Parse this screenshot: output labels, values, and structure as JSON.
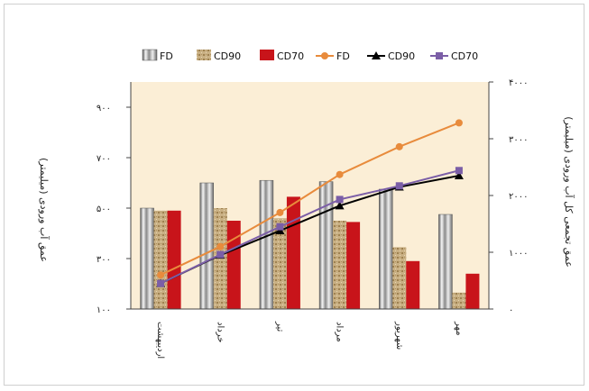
{
  "chart_data": {
    "type": "bar",
    "categories": [
      "اردیبهشت",
      "خرداد",
      "تیر",
      "مرداد",
      "شهریور",
      "مهر"
    ],
    "series": [
      {
        "name": "FD",
        "kind": "bar",
        "axis": "left",
        "values": [
          500,
          600,
          610,
          605,
          575,
          475
        ]
      },
      {
        "name": "CD90",
        "kind": "bar",
        "axis": "left",
        "values": [
          490,
          500,
          460,
          450,
          345,
          165
        ]
      },
      {
        "name": "CD70",
        "kind": "bar",
        "axis": "left",
        "values": [
          490,
          450,
          545,
          445,
          290,
          240
        ]
      },
      {
        "name": "FD",
        "kind": "line",
        "axis": "right",
        "values": [
          600,
          1100,
          1700,
          2370,
          2860,
          3280
        ]
      },
      {
        "name": "CD90",
        "kind": "line",
        "axis": "right",
        "values": [
          450,
          950,
          1380,
          1820,
          2150,
          2350
        ]
      },
      {
        "name": "CD70",
        "kind": "line",
        "axis": "right",
        "values": [
          450,
          960,
          1450,
          1930,
          2170,
          2440
        ]
      }
    ],
    "y_left": {
      "label": "عمق آب ورودی (میلیمتر)",
      "range": [
        100,
        1000
      ],
      "ticks": [
        "۱۰۰",
        "۳۰۰",
        "۵۰۰",
        "۷۰۰",
        "۹۰۰"
      ]
    },
    "y_right": {
      "label": "عمق تجمعی کل آب ورودی (میلیمتر)",
      "range": [
        0,
        4000
      ],
      "ticks": [
        "۰",
        "۱۰۰۰",
        "۲۰۰۰",
        "۳۰۰۰",
        "۴۰۰۰"
      ]
    },
    "legend_placement": "top",
    "grid": false,
    "colors": {
      "plot_bg": "#fbeed6",
      "bar_fd": "#c8c8c8",
      "bar_cd90": "#c2a878",
      "bar_cd70": "#c8141a",
      "line_fd": "#e88b3c",
      "line_cd90": "#000000",
      "line_cd70": "#7b5ea7"
    }
  }
}
